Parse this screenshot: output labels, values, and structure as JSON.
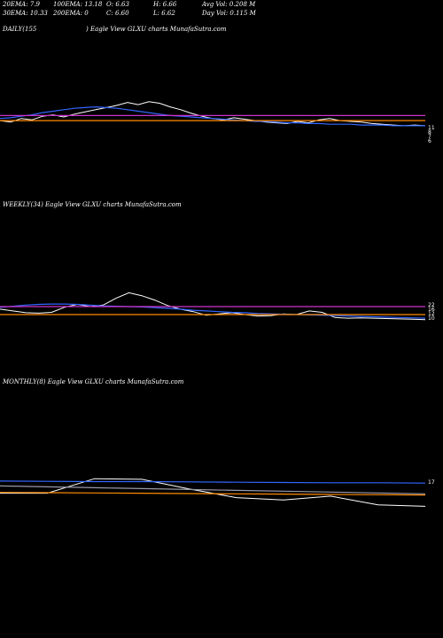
{
  "header": {
    "row1": [
      "20EMA: 7.9",
      "100EMA: 13.18",
      "O: 6.63",
      "H: 6.66",
      "Avg Vol: 0.208 M"
    ],
    "row2": [
      "30EMA: 10.33",
      "200EMA: 0",
      "C: 6.60",
      "L: 6.62",
      "Day Vol: 0.115 M"
    ]
  },
  "panels": {
    "daily_label": "DAILY(155",
    "daily_title": ") Eagle   View  GLXU charts MunafaSutra.com",
    "weekly_label": "WEEKLY(34) Eagle   View  GLXU charts MunafaSutra.com",
    "monthly_label": "MONTHLY(8) Eagle   View  GLXU charts MunafaSutra.com"
  },
  "colors": {
    "background": "#000000",
    "price": "#ffffff",
    "ema_blue": "#3366ff",
    "ema_orange": "#ff8c00",
    "ema_magenta": "#cc33cc",
    "ema_grey": "#9999aa"
  },
  "chart_data": [
    {
      "type": "line",
      "panel": "daily",
      "ylim": [
        0,
        10
      ],
      "right_tick_labels": [
        "11",
        "8",
        "7",
        "6"
      ],
      "series": [
        {
          "color": "#ffffff",
          "values": [
            7.3,
            7.1,
            7.6,
            7.4,
            7.9,
            8.1,
            7.8,
            8.2,
            8.5,
            8.8,
            9.1,
            9.4,
            9.8,
            9.5,
            9.9,
            9.7,
            9.2,
            8.8,
            8.3,
            7.9,
            7.6,
            7.4,
            7.7,
            7.5,
            7.3,
            7.1,
            7.0,
            6.9,
            7.2,
            7.0,
            7.4,
            7.6,
            7.3,
            7.2,
            7.1,
            6.9,
            6.8,
            6.7,
            6.6,
            6.7,
            6.6
          ]
        },
        {
          "color": "#3366ff",
          "values": [
            7.6,
            7.7,
            7.9,
            8.1,
            8.4,
            8.6,
            8.8,
            9.0,
            9.1,
            9.2,
            9.1,
            9.0,
            8.8,
            8.6,
            8.4,
            8.2,
            8.0,
            7.9,
            7.8,
            7.7,
            7.6,
            7.5,
            7.4,
            7.3,
            7.2,
            7.2,
            7.1,
            7.0,
            7.0,
            6.9,
            6.9,
            6.8,
            6.8,
            6.8,
            6.7,
            6.7,
            6.7,
            6.6,
            6.6,
            6.6,
            6.6
          ]
        },
        {
          "color": "#ff8c00",
          "values": [
            7.3,
            7.3,
            7.3,
            7.3,
            7.3,
            7.3,
            7.3,
            7.3,
            7.3,
            7.3,
            7.3,
            7.3,
            7.3,
            7.3,
            7.3,
            7.3,
            7.3,
            7.3,
            7.3,
            7.3,
            7.3,
            7.3,
            7.3,
            7.3,
            7.3,
            7.3,
            7.3,
            7.3,
            7.3,
            7.3,
            7.3,
            7.3,
            7.3,
            7.3,
            7.3,
            7.3,
            7.3,
            7.3,
            7.3,
            7.3,
            7.3
          ]
        },
        {
          "color": "#cc33cc",
          "values": [
            8.0,
            8.0,
            8.0,
            8.0,
            8.0,
            8.0,
            8.0,
            8.0,
            8.0,
            8.0,
            8.0,
            8.0,
            8.0,
            8.0,
            8.0,
            8.0,
            8.0,
            8.0,
            8.0,
            8.0,
            8.0,
            8.0,
            8.0,
            8.0,
            8.0,
            8.0,
            8.0,
            8.0,
            8.0,
            8.0,
            8.0,
            8.0,
            8.0,
            8.0,
            8.0,
            8.0,
            8.0,
            8.0,
            8.0,
            8.0,
            8.0
          ]
        }
      ]
    },
    {
      "type": "line",
      "panel": "weekly",
      "ylim": [
        0,
        20
      ],
      "right_tick_labels": [
        "22",
        "16",
        "12",
        "10"
      ],
      "series": [
        {
          "color": "#ffffff",
          "values": [
            11.5,
            11.0,
            10.5,
            10.4,
            10.6,
            12.0,
            12.8,
            12.2,
            12.6,
            14.5,
            16.0,
            15.2,
            14.0,
            12.5,
            11.5,
            10.8,
            9.8,
            10.2,
            10.5,
            10.0,
            9.6,
            9.7,
            10.2,
            10.0,
            11.0,
            10.6,
            9.2,
            9.0,
            9.1,
            9.0,
            8.9,
            8.8,
            8.7,
            8.6
          ]
        },
        {
          "color": "#3366ff",
          "values": [
            12.0,
            12.3,
            12.6,
            12.8,
            12.9,
            12.9,
            12.8,
            12.6,
            12.4,
            12.3,
            12.2,
            12.1,
            11.9,
            11.7,
            11.5,
            11.2,
            11.0,
            10.8,
            10.6,
            10.5,
            10.3,
            10.2,
            10.1,
            10.0,
            9.9,
            9.8,
            9.7,
            9.6,
            9.5,
            9.4,
            9.3,
            9.2,
            9.1,
            9.0
          ]
        },
        {
          "color": "#ff8c00",
          "values": [
            10.0,
            10.0,
            10.0,
            10.0,
            10.0,
            10.0,
            10.0,
            10.0,
            10.0,
            10.0,
            10.0,
            10.0,
            10.0,
            10.0,
            10.0,
            10.0,
            10.0,
            10.0,
            10.0,
            10.0,
            10.0,
            10.0,
            10.0,
            10.0,
            10.0,
            10.0,
            10.0,
            10.0,
            10.0,
            10.0,
            10.0,
            10.0,
            10.0,
            10.0
          ]
        },
        {
          "color": "#cc33cc",
          "values": [
            12.2,
            12.2,
            12.2,
            12.2,
            12.2,
            12.2,
            12.2,
            12.2,
            12.2,
            12.2,
            12.2,
            12.2,
            12.2,
            12.2,
            12.2,
            12.2,
            12.2,
            12.2,
            12.2,
            12.2,
            12.2,
            12.2,
            12.2,
            12.2,
            12.2,
            12.2,
            12.2,
            12.2,
            12.2,
            12.2,
            12.2,
            12.2,
            12.2,
            12.2
          ]
        }
      ]
    },
    {
      "type": "line",
      "panel": "monthly",
      "ylim": [
        0,
        25
      ],
      "right_tick_labels": [
        "17"
      ],
      "series": [
        {
          "color": "#ffffff",
          "values": [
            12.0,
            12.0,
            17.0,
            16.8,
            13.5,
            10.5,
            9.7,
            11.0,
            8.0,
            7.5
          ]
        },
        {
          "color": "#3366ff",
          "values": [
            16.2,
            16.1,
            16.0,
            16.0,
            15.9,
            15.8,
            15.7,
            15.6,
            15.6,
            15.5
          ]
        },
        {
          "color": "#ff8c00",
          "values": [
            12.3,
            12.2,
            12.1,
            12.0,
            11.9,
            11.8,
            11.7,
            11.6,
            11.5,
            11.4
          ]
        },
        {
          "color": "#9999aa",
          "values": [
            14.5,
            14.2,
            13.9,
            13.6,
            13.3,
            13.0,
            12.7,
            12.4,
            12.1,
            11.8
          ]
        }
      ]
    }
  ]
}
